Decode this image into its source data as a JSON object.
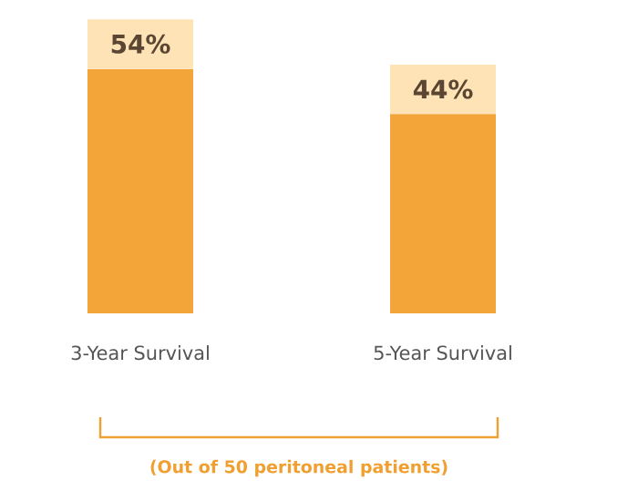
{
  "chart_data": {
    "type": "bar",
    "categories": [
      "3-Year Survival",
      "5-Year Survival"
    ],
    "values": [
      54,
      44
    ],
    "color": "#f4a53a",
    "value_labels": [
      "54%",
      "44%"
    ],
    "annotations": [
      "(Out of 50 peritoneal patients)"
    ]
  }
}
